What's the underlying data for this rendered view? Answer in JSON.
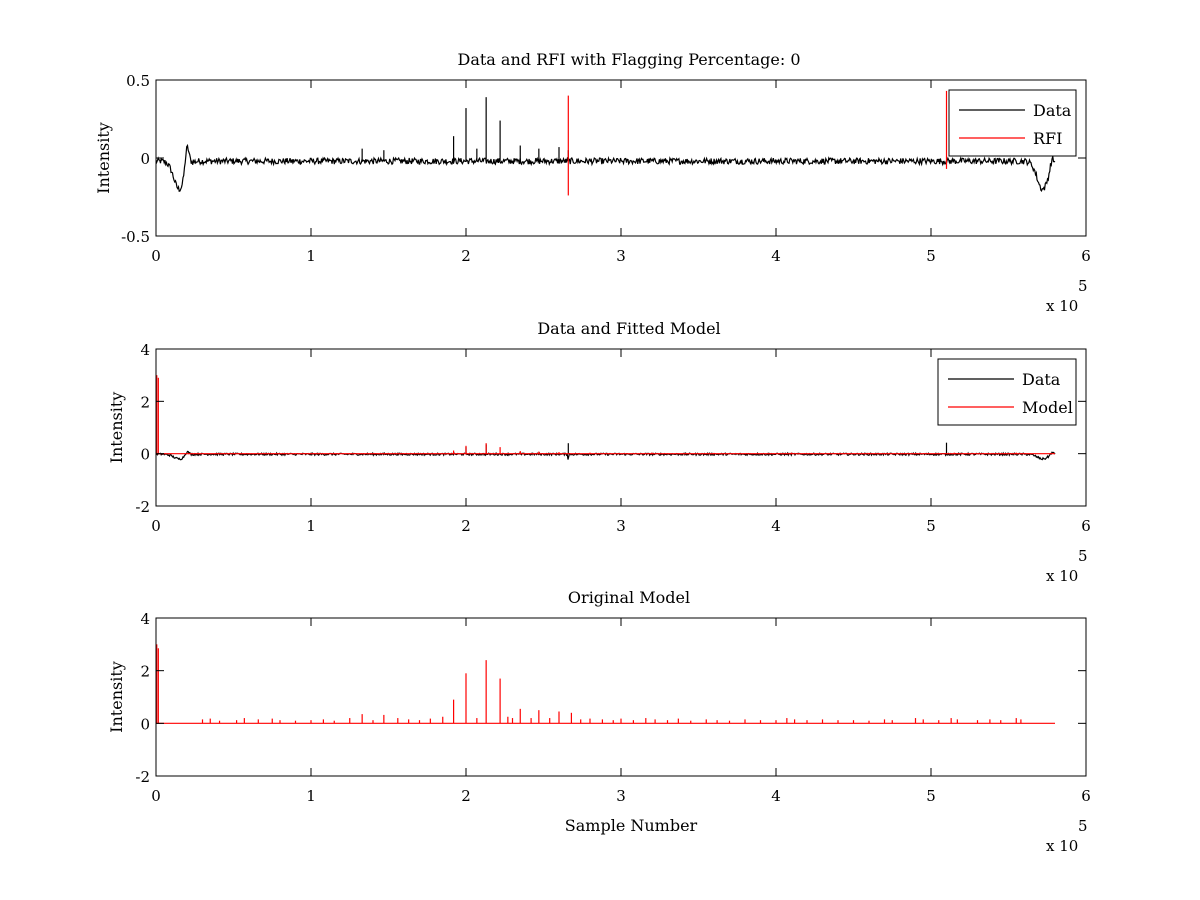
{
  "chart_data": [
    {
      "type": "line",
      "title": "Data and RFI with Flagging Percentage: 0",
      "xlabel": "",
      "ylabel": "Intensity",
      "xlim": [
        0,
        6
      ],
      "ylim": [
        -0.5,
        0.5
      ],
      "x_multiplier_label": "x 10",
      "x_multiplier_exponent": "5",
      "xticks": [
        "0",
        "1",
        "2",
        "3",
        "4",
        "5",
        "6"
      ],
      "yticks": [
        "-0.5",
        "0",
        "0.5"
      ],
      "ytick_values": [
        -0.5,
        0,
        0.5
      ],
      "legend": {
        "placement": "top-right",
        "entries": [
          "Data",
          "RFI"
        ]
      },
      "series": [
        {
          "name": "Data",
          "color": "#000000",
          "baseline": -0.02,
          "noise": 0.02,
          "x_end": 5.8,
          "spikes": [
            [
              1.33,
              0.06
            ],
            [
              1.47,
              0.05
            ],
            [
              1.92,
              0.14
            ],
            [
              2.0,
              0.32
            ],
            [
              2.07,
              0.06
            ],
            [
              2.13,
              0.39
            ],
            [
              2.22,
              0.24
            ],
            [
              2.35,
              0.08
            ],
            [
              2.47,
              0.06
            ],
            [
              2.6,
              0.07
            ],
            [
              2.66,
              0.05
            ]
          ],
          "dips": [
            [
              0.15,
              -0.2,
              0.05
            ],
            [
              5.72,
              -0.2,
              0.05
            ]
          ],
          "bumps": [
            [
              0.2,
              0.13,
              0.018
            ],
            [
              5.78,
              0.03,
              0.015
            ]
          ]
        },
        {
          "name": "RFI",
          "color": "#ff0000",
          "vlines": [
            [
              2.66,
              -0.24,
              0.4
            ],
            [
              5.1,
              -0.07,
              0.43
            ]
          ]
        }
      ]
    },
    {
      "type": "line",
      "title": "Data and Fitted Model",
      "xlabel": "",
      "ylabel": "Intensity",
      "xlim": [
        0,
        6
      ],
      "ylim": [
        -2,
        4
      ],
      "x_multiplier_label": "x 10",
      "x_multiplier_exponent": "5",
      "xticks": [
        "0",
        "1",
        "2",
        "3",
        "4",
        "5",
        "6"
      ],
      "yticks": [
        "-2",
        "0",
        "2",
        "4"
      ],
      "ytick_values": [
        -2,
        0,
        2,
        4
      ],
      "legend": {
        "placement": "top-right",
        "entries": [
          "Data",
          "Model"
        ]
      },
      "series": [
        {
          "name": "Data",
          "color": "#000000",
          "baseline": -0.02,
          "noise": 0.04,
          "x_end": 5.8,
          "spikes": [
            [
              2.66,
              0.4
            ],
            [
              5.1,
              0.42
            ],
            [
              2.13,
              0.35
            ],
            [
              2.0,
              0.25
            ]
          ],
          "dips": [
            [
              0.15,
              -0.2,
              0.05
            ],
            [
              5.72,
              -0.2,
              0.05
            ],
            [
              2.66,
              -0.25,
              0.003
            ]
          ],
          "bumps": [
            [
              0.2,
              0.13,
              0.018
            ],
            [
              5.78,
              0.08,
              0.015
            ]
          ]
        },
        {
          "name": "Model",
          "color": "#ff0000",
          "baseline": 0,
          "x_end": 5.8,
          "spikes": [
            [
              0.005,
              3.0
            ],
            [
              0.015,
              2.9
            ],
            [
              1.92,
              0.12
            ],
            [
              2.0,
              0.3
            ],
            [
              2.13,
              0.4
            ],
            [
              2.22,
              0.25
            ],
            [
              2.35,
              0.1
            ],
            [
              2.47,
              0.08
            ],
            [
              2.6,
              0.06
            ],
            [
              2.8,
              0.04
            ],
            [
              3.2,
              0.04
            ],
            [
              3.6,
              0.03
            ],
            [
              4.1,
              0.04
            ],
            [
              4.6,
              0.03
            ],
            [
              5.15,
              0.04
            ],
            [
              5.55,
              0.04
            ]
          ]
        }
      ]
    },
    {
      "type": "line",
      "title": "Original Model",
      "xlabel": "Sample Number",
      "ylabel": "Intensity",
      "xlim": [
        0,
        6
      ],
      "ylim": [
        -2,
        4
      ],
      "x_multiplier_label": "x 10",
      "x_multiplier_exponent": "5",
      "xticks": [
        "0",
        "1",
        "2",
        "3",
        "4",
        "5",
        "6"
      ],
      "yticks": [
        "-2",
        "0",
        "2",
        "4"
      ],
      "ytick_values": [
        -2,
        0,
        2,
        4
      ],
      "legend": null,
      "series": [
        {
          "name": "",
          "color": "#ff0000",
          "baseline": 0,
          "x_end": 5.8,
          "spikes": [
            [
              0.005,
              3.0
            ],
            [
              0.015,
              2.85
            ],
            [
              0.3,
              0.15
            ],
            [
              0.35,
              0.18
            ],
            [
              0.41,
              0.1
            ],
            [
              0.52,
              0.12
            ],
            [
              0.57,
              0.2
            ],
            [
              0.66,
              0.15
            ],
            [
              0.75,
              0.18
            ],
            [
              0.8,
              0.12
            ],
            [
              0.9,
              0.1
            ],
            [
              1.0,
              0.12
            ],
            [
              1.08,
              0.15
            ],
            [
              1.15,
              0.1
            ],
            [
              1.25,
              0.2
            ],
            [
              1.33,
              0.35
            ],
            [
              1.4,
              0.12
            ],
            [
              1.47,
              0.32
            ],
            [
              1.56,
              0.2
            ],
            [
              1.63,
              0.15
            ],
            [
              1.7,
              0.12
            ],
            [
              1.77,
              0.18
            ],
            [
              1.85,
              0.25
            ],
            [
              1.92,
              0.9
            ],
            [
              2.0,
              1.9
            ],
            [
              2.07,
              0.2
            ],
            [
              2.13,
              2.4
            ],
            [
              2.22,
              1.7
            ],
            [
              2.27,
              0.25
            ],
            [
              2.3,
              0.2
            ],
            [
              2.35,
              0.55
            ],
            [
              2.42,
              0.2
            ],
            [
              2.47,
              0.5
            ],
            [
              2.54,
              0.2
            ],
            [
              2.6,
              0.45
            ],
            [
              2.68,
              0.4
            ],
            [
              2.74,
              0.15
            ],
            [
              2.8,
              0.18
            ],
            [
              2.88,
              0.15
            ],
            [
              2.95,
              0.12
            ],
            [
              3.0,
              0.18
            ],
            [
              3.08,
              0.12
            ],
            [
              3.16,
              0.2
            ],
            [
              3.22,
              0.15
            ],
            [
              3.3,
              0.12
            ],
            [
              3.37,
              0.18
            ],
            [
              3.45,
              0.1
            ],
            [
              3.55,
              0.15
            ],
            [
              3.62,
              0.12
            ],
            [
              3.7,
              0.1
            ],
            [
              3.8,
              0.15
            ],
            [
              3.9,
              0.12
            ],
            [
              4.0,
              0.12
            ],
            [
              4.07,
              0.2
            ],
            [
              4.12,
              0.15
            ],
            [
              4.2,
              0.12
            ],
            [
              4.3,
              0.15
            ],
            [
              4.4,
              0.12
            ],
            [
              4.5,
              0.12
            ],
            [
              4.6,
              0.1
            ],
            [
              4.7,
              0.15
            ],
            [
              4.75,
              0.12
            ],
            [
              4.9,
              0.2
            ],
            [
              4.95,
              0.15
            ],
            [
              5.05,
              0.12
            ],
            [
              5.13,
              0.2
            ],
            [
              5.17,
              0.15
            ],
            [
              5.3,
              0.12
            ],
            [
              5.38,
              0.15
            ],
            [
              5.45,
              0.12
            ],
            [
              5.55,
              0.2
            ],
            [
              5.58,
              0.15
            ]
          ]
        }
      ]
    }
  ]
}
